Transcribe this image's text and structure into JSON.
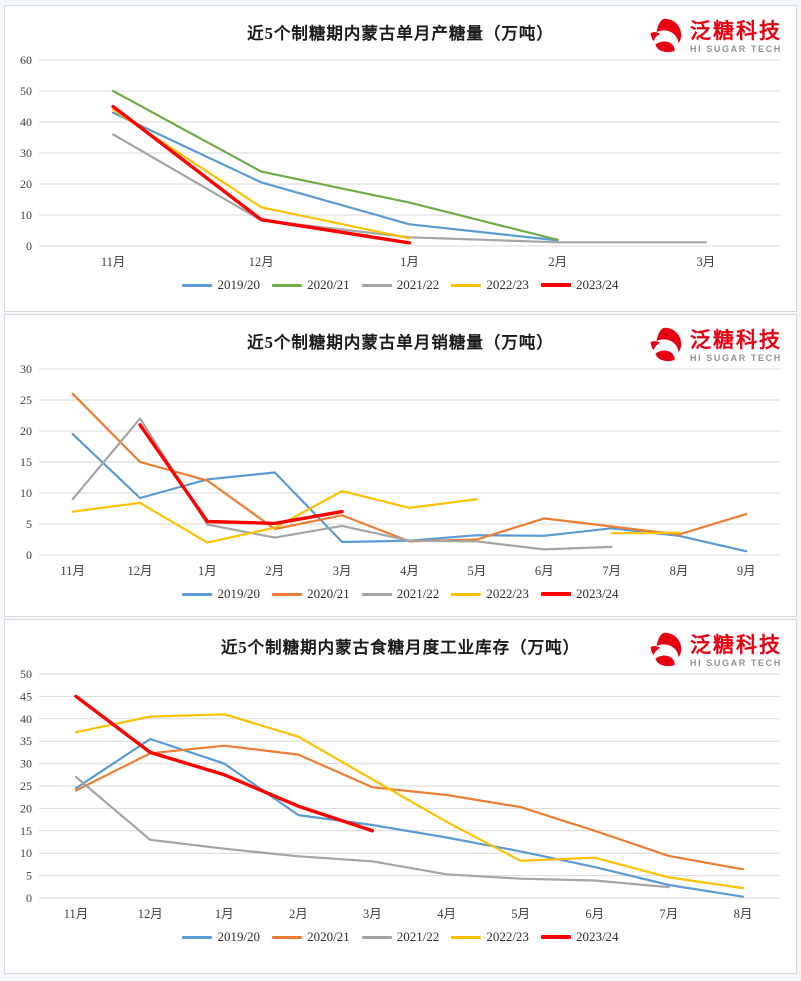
{
  "logo": {
    "brand_cn": "泛糖科技",
    "brand_en": "HI SUGAR TECH",
    "accent_color": "#e60012"
  },
  "chart_data": [
    {
      "type": "line",
      "title": "近5个制糖期内蒙古单月产糖量（万吨）",
      "xlabel": "",
      "ylabel": "",
      "ylim": [
        0,
        60
      ],
      "ystep": 10,
      "grid": true,
      "legend_position": "bottom",
      "categories": [
        "11月",
        "12月",
        "1月",
        "2月",
        "3月"
      ],
      "series": [
        {
          "name": "2019/20",
          "color": "#5B9BD5",
          "stroke_width": 2.2,
          "values": [
            43,
            20.5,
            7,
            1.8,
            null
          ]
        },
        {
          "name": "2020/21",
          "color": "#70AD47",
          "stroke_width": 2.2,
          "values": [
            50,
            24,
            14,
            2,
            null
          ]
        },
        {
          "name": "2021/22",
          "color": "#A5A5A5",
          "stroke_width": 2.2,
          "values": [
            36,
            8.3,
            2.8,
            1.2,
            1.2
          ]
        },
        {
          "name": "2022/23",
          "color": "#FFC000",
          "stroke_width": 2.2,
          "values": [
            44,
            12.5,
            2.5,
            null,
            null
          ]
        },
        {
          "name": "2023/24",
          "color": "#FF0000",
          "stroke_width": 3.4,
          "values": [
            45,
            8.5,
            1,
            null,
            null
          ]
        }
      ]
    },
    {
      "type": "line",
      "title": "近5个制糖期内蒙古单月销糖量（万吨）",
      "xlabel": "",
      "ylabel": "",
      "ylim": [
        0,
        30
      ],
      "ystep": 5,
      "grid": true,
      "legend_position": "bottom",
      "categories": [
        "11月",
        "12月",
        "1月",
        "2月",
        "3月",
        "4月",
        "5月",
        "6月",
        "7月",
        "8月",
        "9月"
      ],
      "series": [
        {
          "name": "2019/20",
          "color": "#5B9BD5",
          "stroke_width": 2.2,
          "values": [
            19.5,
            9.2,
            12.2,
            13.3,
            2.1,
            2.3,
            3.2,
            3.1,
            4.3,
            3.1,
            0.6
          ]
        },
        {
          "name": "2020/21",
          "color": "#ED7D31",
          "stroke_width": 2.2,
          "values": [
            26,
            15,
            12,
            4.2,
            6.4,
            2.2,
            2.5,
            5.9,
            4.6,
            3.3,
            6.6
          ]
        },
        {
          "name": "2021/22",
          "color": "#A5A5A5",
          "stroke_width": 2.2,
          "values": [
            9,
            22,
            4.9,
            2.8,
            4.7,
            2.3,
            2.2,
            0.9,
            1.3,
            null,
            null
          ]
        },
        {
          "name": "2022/23",
          "color": "#FFC000",
          "stroke_width": 2.2,
          "values": [
            7,
            8.4,
            2,
            4.4,
            10.3,
            7.6,
            9,
            null,
            3.5,
            3.6,
            null
          ]
        },
        {
          "name": "2023/24",
          "color": "#FF0000",
          "stroke_width": 3.4,
          "values": [
            null,
            21,
            5.4,
            5.1,
            7,
            null,
            null,
            null,
            null,
            null,
            null
          ]
        }
      ]
    },
    {
      "type": "line",
      "title": "近5个制糖期内蒙古食糖月度工业库存（万吨）",
      "xlabel": "",
      "ylabel": "",
      "ylim": [
        0,
        50
      ],
      "ystep": 5,
      "grid": true,
      "legend_position": "bottom",
      "categories": [
        "11月",
        "12月",
        "1月",
        "2月",
        "3月",
        "4月",
        "5月",
        "6月",
        "7月",
        "8月"
      ],
      "series": [
        {
          "name": "2019/20",
          "color": "#5B9BD5",
          "stroke_width": 2.2,
          "values": [
            24.5,
            35.5,
            30,
            18.5,
            16.3,
            13.5,
            10.4,
            6.9,
            2.9,
            0.3
          ]
        },
        {
          "name": "2020/21",
          "color": "#ED7D31",
          "stroke_width": 2.2,
          "values": [
            24,
            32.3,
            34,
            32,
            24.7,
            23,
            20.3,
            15,
            9.4,
            6.4
          ]
        },
        {
          "name": "2021/22",
          "color": "#A5A5A5",
          "stroke_width": 2.2,
          "values": [
            27,
            13,
            11,
            9.3,
            8.2,
            5.3,
            4.3,
            3.9,
            2.4,
            null
          ]
        },
        {
          "name": "2022/23",
          "color": "#FFC000",
          "stroke_width": 2.2,
          "values": [
            37,
            40.5,
            41,
            36,
            26.5,
            17,
            8.3,
            9,
            4.6,
            2.2
          ]
        },
        {
          "name": "2023/24",
          "color": "#FF0000",
          "stroke_width": 3.4,
          "values": [
            45,
            32.5,
            27.5,
            20.5,
            15,
            null,
            null,
            null,
            null,
            null
          ]
        }
      ]
    }
  ]
}
